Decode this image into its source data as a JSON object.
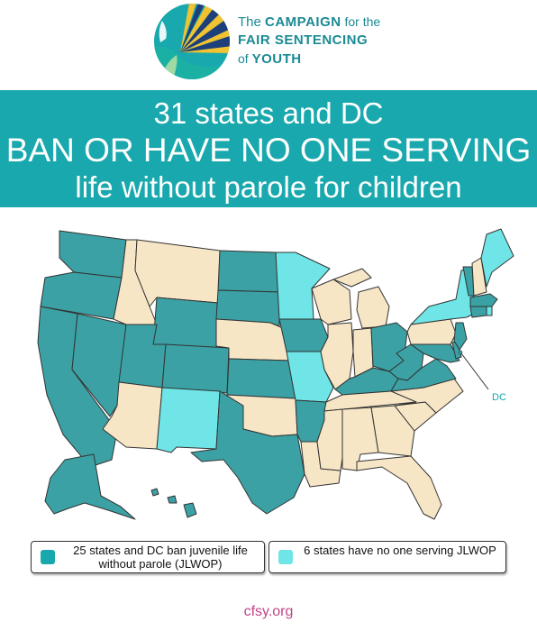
{
  "logo": {
    "icon": "sunburst-logo-icon",
    "line1_prefix": "The ",
    "line1_main": "CAMPAIGN",
    "line1_suffix": " for the",
    "line2": "FAIR SENTENCING",
    "line3_prefix": "of ",
    "line3_main": "YOUTH"
  },
  "banner": {
    "line1": "31 states and DC",
    "line2": "BAN OR HAVE NO ONE SERVING",
    "line3": "life without parole for children"
  },
  "map": {
    "dc_label": "DC",
    "colors": {
      "ban": "#3ba1a4",
      "none_serving": "#6fe5e7",
      "other": "#f7e6c6",
      "border": "#333333"
    },
    "categories": {
      "ban": [
        "WA",
        "OR",
        "CA",
        "NV",
        "UT",
        "CO",
        "WY",
        "ND",
        "SD",
        "KS",
        "TX",
        "IA",
        "AR",
        "AK",
        "HI",
        "KY",
        "WV",
        "VA",
        "OH",
        "NJ",
        "DE",
        "MD",
        "CT",
        "MA",
        "VT",
        "DC"
      ],
      "none_serving": [
        "NM",
        "MN",
        "MO",
        "NY",
        "ME",
        "RI"
      ],
      "other": [
        "ID",
        "MT",
        "AZ",
        "NE",
        "OK",
        "LA",
        "MS",
        "AL",
        "GA",
        "FL",
        "SC",
        "NC",
        "TN",
        "IL",
        "IN",
        "WI",
        "MI",
        "PA",
        "NH"
      ]
    }
  },
  "legend": {
    "item1": {
      "label": "25 states and DC ban juvenile life without parole (JLWOP)",
      "color": "#19a8ad"
    },
    "item2": {
      "label": "6 states have no one serving JLWOP",
      "color": "#6fe5e7"
    }
  },
  "footer": {
    "url": "cfsy.org"
  }
}
